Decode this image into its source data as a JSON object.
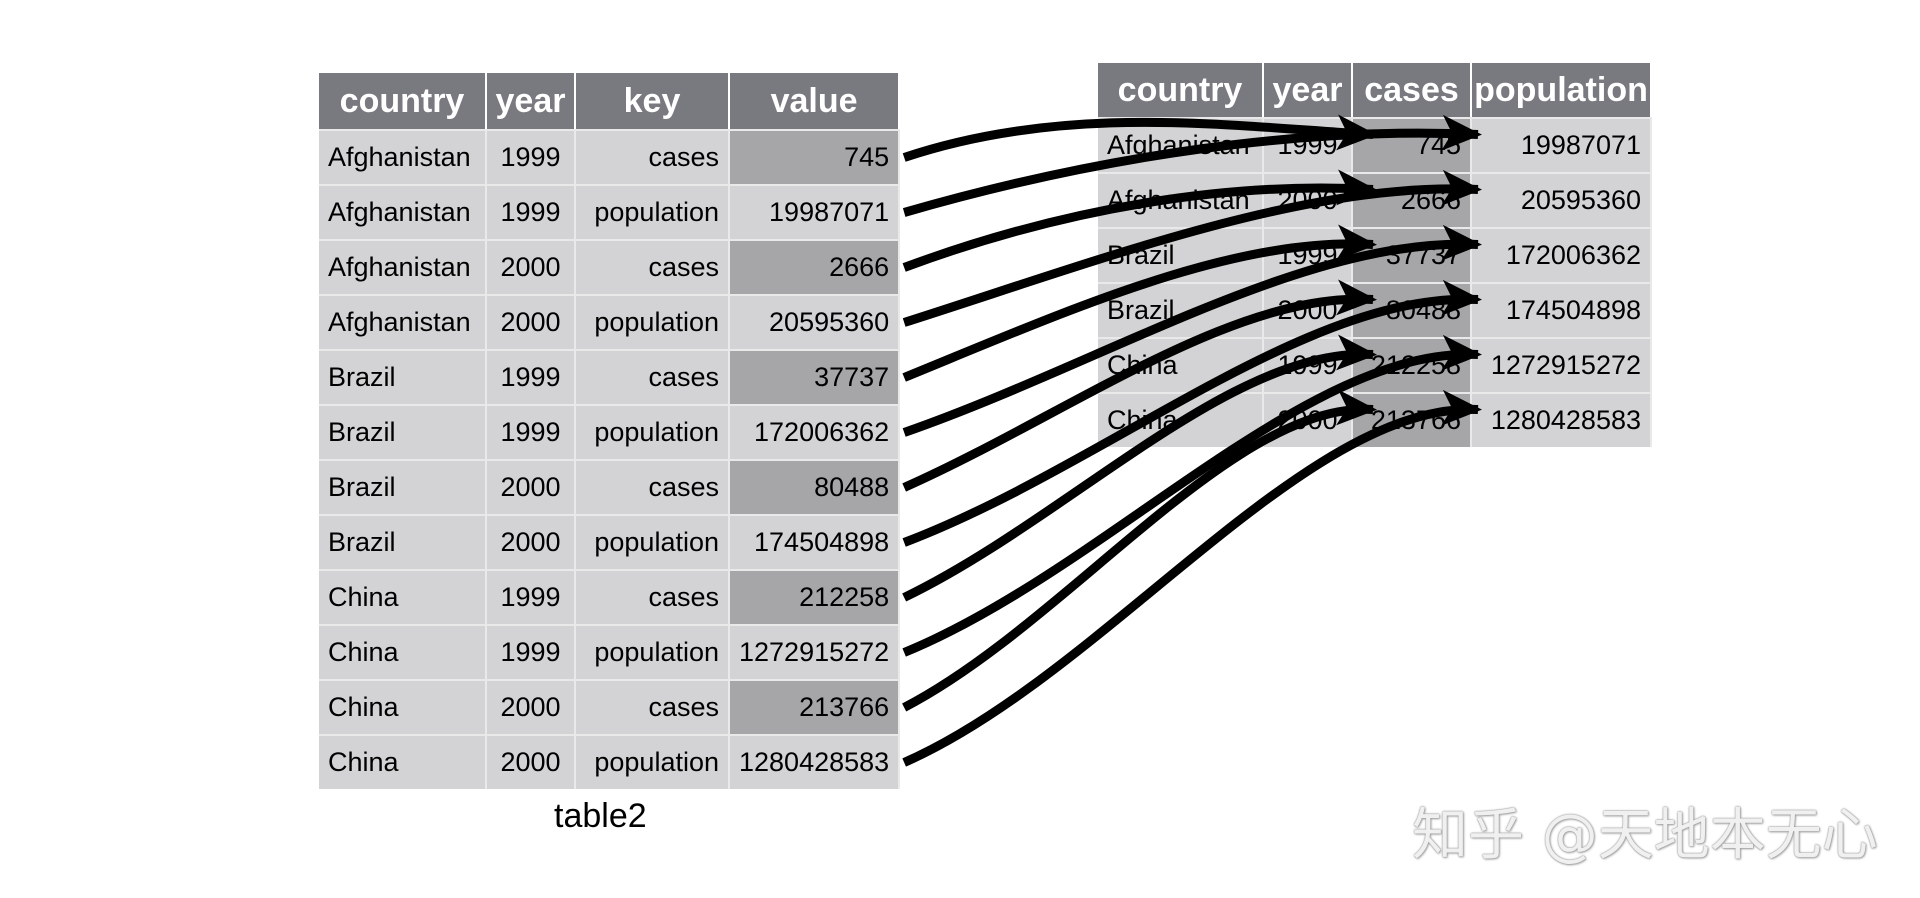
{
  "long_table": {
    "caption": "table2",
    "headers": [
      "country",
      "year",
      "key",
      "value"
    ],
    "rows": [
      [
        "Afghanistan",
        "1999",
        "cases",
        "745"
      ],
      [
        "Afghanistan",
        "1999",
        "population",
        "19987071"
      ],
      [
        "Afghanistan",
        "2000",
        "cases",
        "2666"
      ],
      [
        "Afghanistan",
        "2000",
        "population",
        "20595360"
      ],
      [
        "Brazil",
        "1999",
        "cases",
        "37737"
      ],
      [
        "Brazil",
        "1999",
        "population",
        "172006362"
      ],
      [
        "Brazil",
        "2000",
        "cases",
        "80488"
      ],
      [
        "Brazil",
        "2000",
        "population",
        "174504898"
      ],
      [
        "China",
        "1999",
        "cases",
        "212258"
      ],
      [
        "China",
        "1999",
        "population",
        "1272915272"
      ],
      [
        "China",
        "2000",
        "cases",
        "213766"
      ],
      [
        "China",
        "2000",
        "population",
        "1280428583"
      ]
    ]
  },
  "wide_table": {
    "headers": [
      "country",
      "year",
      "cases",
      "population"
    ],
    "rows": [
      [
        "Afghanistan",
        "1999",
        "745",
        "19987071"
      ],
      [
        "Afghanistan",
        "2000",
        "2666",
        "20595360"
      ],
      [
        "Brazil",
        "1999",
        "37737",
        "172006362"
      ],
      [
        "Brazil",
        "2000",
        "80488",
        "174504898"
      ],
      [
        "China",
        "1999",
        "212258",
        "1272915272"
      ],
      [
        "China",
        "2000",
        "213766",
        "1280428583"
      ]
    ]
  },
  "watermark": "知乎 @天地本无心",
  "colors": {
    "header": "#787a80",
    "cell": "#d3d3d5",
    "highlight_cell": "#a6a6a8",
    "arrow": "#000000"
  }
}
